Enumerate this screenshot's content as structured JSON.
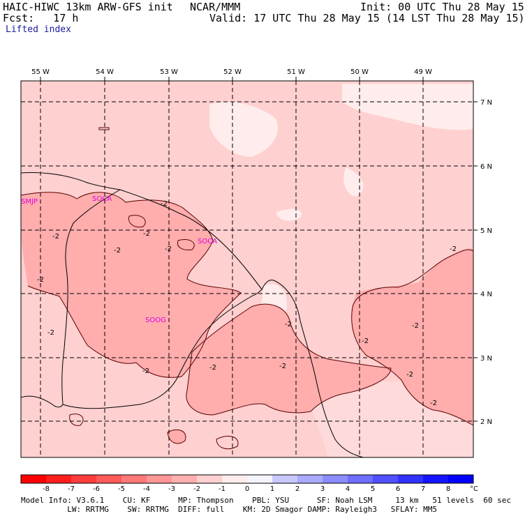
{
  "header": {
    "model": "HAIC-HIWC 13km ARW-GFS init",
    "org": "NCAR/MMM",
    "init": "Init: 00 UTC Thu 28 May 15",
    "fcst": "Fcst:   17 h",
    "valid": "Valid: 17 UTC Thu 28 May 15 (14 LST Thu 28 May 15)",
    "field": "Lifted index"
  },
  "map": {
    "lon_labels": [
      "55 W",
      "54 W",
      "53 W",
      "52 W",
      "51 W",
      "50 W",
      "49 W"
    ],
    "lat_labels": [
      "7 N",
      "6 N",
      "5 N",
      "4 N",
      "3 N",
      "2 N"
    ],
    "stations": [
      "SMJP",
      "SOCA",
      "SOCA",
      "SOOG"
    ],
    "contour_labels": [
      "-2",
      "-2",
      "-2",
      "-2",
      "-2",
      "-2",
      "-2",
      "-2",
      "-2",
      "-2",
      "-2",
      "-2",
      "-2",
      "-2",
      "-2",
      "-2"
    ],
    "colors": {
      "bg_light": "#ffd0d0",
      "bg_mid": "#ffadad",
      "bg_white": "#ffecec",
      "station": "#e000e0"
    }
  },
  "colorbar": {
    "labels": [
      "-8",
      "-7",
      "-6",
      "-5",
      "-4",
      "-3",
      "-2",
      "-1",
      "0",
      "1",
      "2",
      "3",
      "4",
      "5",
      "6",
      "7",
      "8"
    ],
    "unit": "°C",
    "colors": [
      "#ff0000",
      "#ff1e1e",
      "#ff3c3c",
      "#ff5a5a",
      "#ff7878",
      "#ff9696",
      "#ffafaf",
      "#ffd0d0",
      "#ffecec",
      "#f4f4ff",
      "#c8c8ff",
      "#aaaaff",
      "#8c8cff",
      "#6e6eff",
      "#5050ff",
      "#3232ff",
      "#1414ff",
      "#0000ff"
    ]
  },
  "footer": {
    "line1": "Model Info: V3.6.1    CU: KF      MP: Thompson    PBL: YSU      SF: Noah LSM     13 km   51 levels  60 sec",
    "line2": "          LW: RRTMG    SW: RRTMG  DIFF: full    KM: 2D Smagor DAMP: Rayleigh3   SFLAY: MM5"
  }
}
